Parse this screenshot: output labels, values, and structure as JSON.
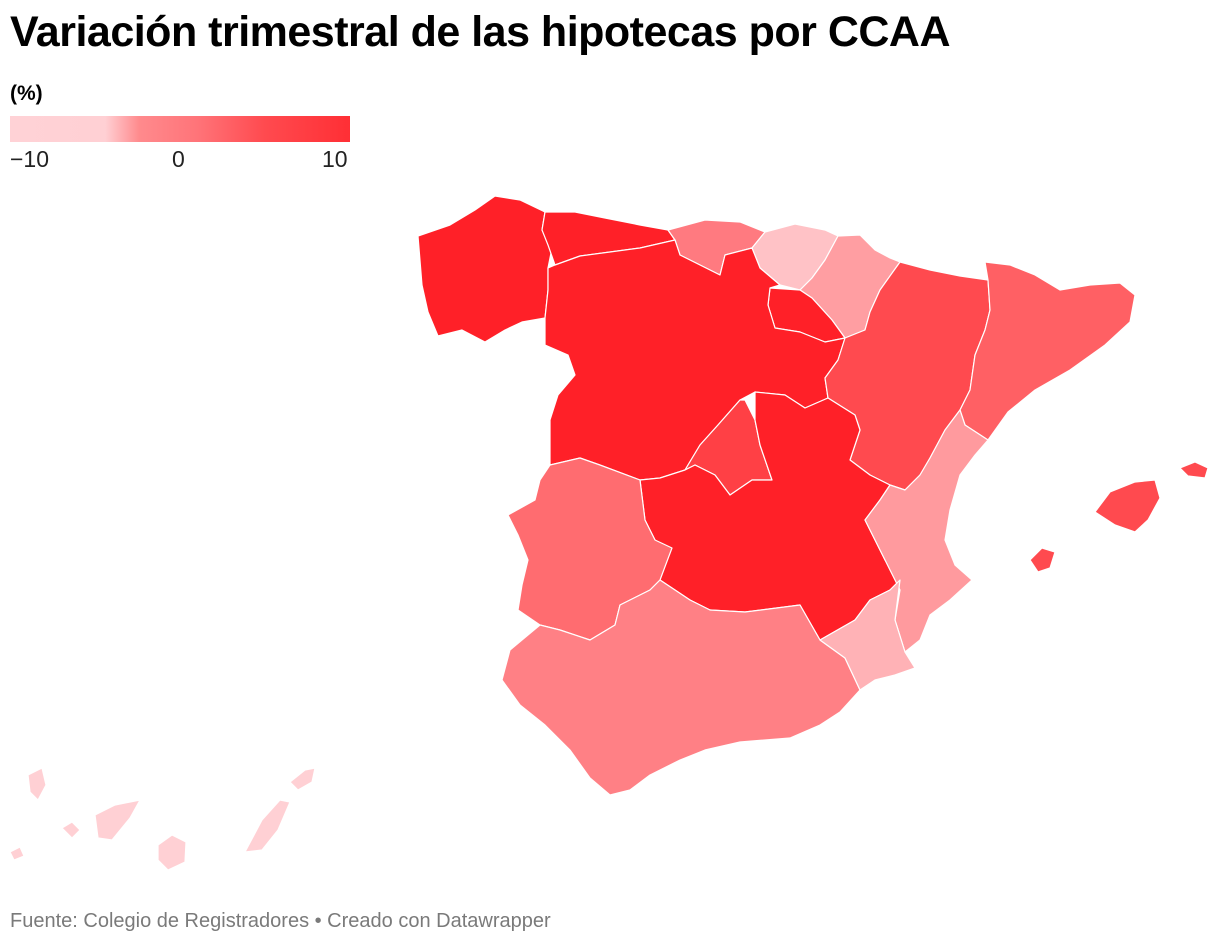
{
  "title": "Variación trimestral de las hipotecas por CCAA",
  "legend": {
    "unit": "(%)",
    "ticks": [
      "−10",
      "0",
      "10"
    ],
    "colors": [
      "#ffd2d6",
      "#ff8a8d",
      "#ff2f35"
    ]
  },
  "chart_data": {
    "type": "choropleth",
    "title": "Variación trimestral de las hipotecas por CCAA",
    "scale_domain": [
      -10,
      10
    ],
    "regions": [
      {
        "name": "Galicia",
        "color": "#ff2028"
      },
      {
        "name": "Asturias",
        "color": "#ff2028"
      },
      {
        "name": "Cantabria",
        "color": "#ff7a80"
      },
      {
        "name": "País Vasco",
        "color": "#ffc2c6"
      },
      {
        "name": "Navarra",
        "color": "#ff9ea2"
      },
      {
        "name": "La Rioja",
        "color": "#ff2028"
      },
      {
        "name": "Castilla y León",
        "color": "#ff2028"
      },
      {
        "name": "Aragón",
        "color": "#ff4a4f"
      },
      {
        "name": "Cataluña",
        "color": "#ff6064"
      },
      {
        "name": "Comunidad de Madrid",
        "color": "#ff4045"
      },
      {
        "name": "Castilla-La Mancha",
        "color": "#ff2028"
      },
      {
        "name": "Comunidad Valenciana",
        "color": "#ff9a9e"
      },
      {
        "name": "Extremadura",
        "color": "#ff6c70"
      },
      {
        "name": "Andalucía",
        "color": "#ff8085"
      },
      {
        "name": "Región de Murcia",
        "color": "#ffb2b6"
      },
      {
        "name": "Islas Baleares",
        "color": "#ff4a4f"
      },
      {
        "name": "Canarias",
        "color": "#ffd0d4"
      }
    ]
  },
  "source": "Fuente: Colegio de Registradores • Creado con Datawrapper"
}
